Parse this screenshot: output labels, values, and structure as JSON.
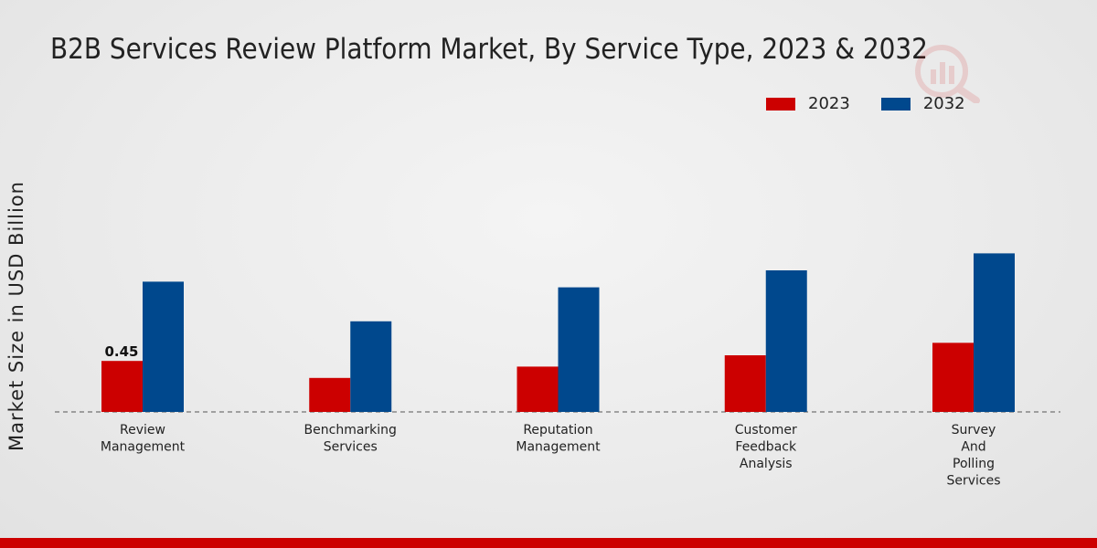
{
  "chart_data": {
    "type": "bar",
    "title": "B2B Services Review Platform Market, By Service Type, 2023 & 2032",
    "ylabel": "Market Size in USD Billion",
    "xlabel": "",
    "categories": [
      "Review Management",
      "Benchmarking Services",
      "Reputation Management",
      "Customer Feedback Analysis",
      "Survey And Polling Services"
    ],
    "category_lines": [
      [
        "Review",
        "Management"
      ],
      [
        "Benchmarking",
        "Services"
      ],
      [
        "Reputation",
        "Management"
      ],
      [
        "Customer",
        "Feedback",
        "Analysis"
      ],
      [
        "Survey",
        "And",
        "Polling",
        "Services"
      ]
    ],
    "series": [
      {
        "name": "2023",
        "color": "#cc0000",
        "values": [
          0.45,
          0.3,
          0.4,
          0.5,
          0.61
        ]
      },
      {
        "name": "2032",
        "color": "#00488d",
        "values": [
          1.15,
          0.8,
          1.1,
          1.25,
          1.4
        ]
      }
    ],
    "data_labels": [
      {
        "series": 0,
        "category": 0,
        "text": "0.45"
      }
    ],
    "ylim": [
      0,
      2.2
    ],
    "grid": false,
    "legend_position": "top-right"
  }
}
